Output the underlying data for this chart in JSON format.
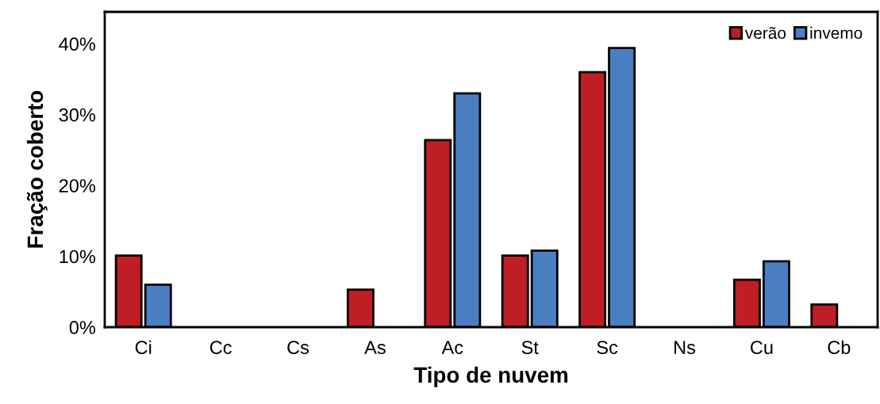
{
  "chart_data": {
    "type": "bar",
    "xlabel": "Tipo de nuvem",
    "ylabel": "Fração coberto",
    "categories": [
      "Ci",
      "Cc",
      "Cs",
      "As",
      "Ac",
      "St",
      "Sc",
      "Ns",
      "Cu",
      "Cb"
    ],
    "series": [
      {
        "name": "verão",
        "color": "#be1e24",
        "values": [
          10.1,
          null,
          null,
          5.3,
          26.4,
          10.1,
          36.0,
          null,
          6.7,
          3.2
        ]
      },
      {
        "name": "invemo",
        "color": "#4a7fc1",
        "values": [
          6.0,
          null,
          null,
          null,
          33.0,
          10.8,
          39.4,
          null,
          9.3,
          null
        ]
      }
    ],
    "ylim": [
      0,
      44.5
    ],
    "yticks": [
      {
        "value": 0,
        "label": "0%"
      },
      {
        "value": 10,
        "label": "10%"
      },
      {
        "value": 20,
        "label": "20%"
      },
      {
        "value": 30,
        "label": "30%"
      },
      {
        "value": 40,
        "label": "40%"
      }
    ],
    "grid": false,
    "legend": "top right"
  }
}
